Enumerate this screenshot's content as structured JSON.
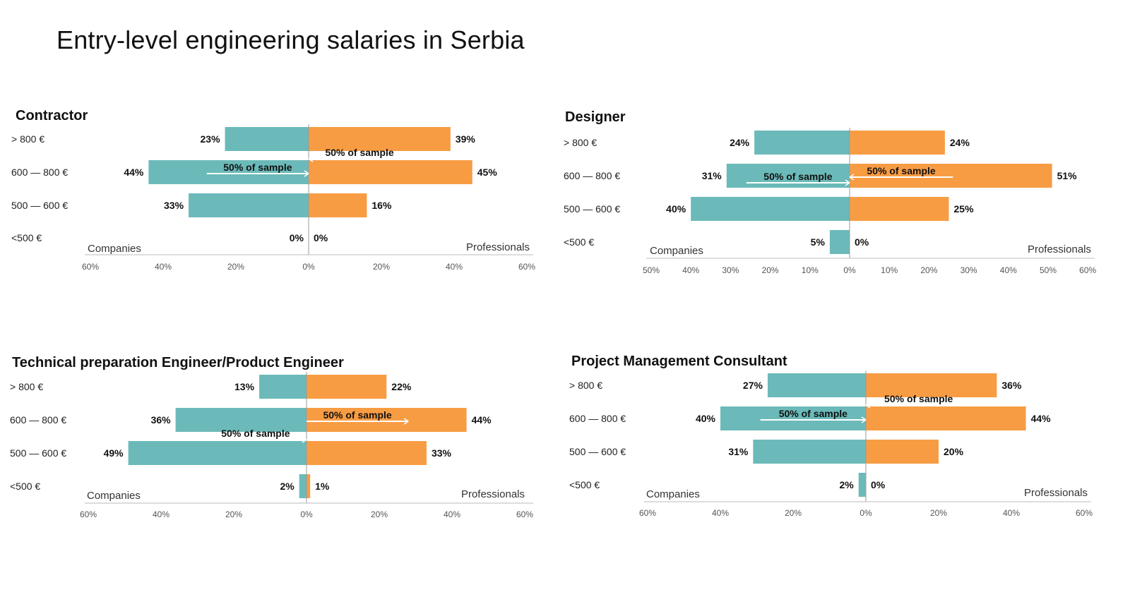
{
  "page": {
    "title": "Entry-level engineering salaries in Serbia"
  },
  "colors": {
    "companies": "#6bbab9",
    "professionals": "#f89c43",
    "axis": "#bbbbbb",
    "arrow": "#ffffff"
  },
  "chart_data": [
    {
      "type": "bar",
      "orientation": "diverging-horizontal",
      "title": "Contractor",
      "categories": [
        "> 800 €",
        "600 — 800 €",
        "500 — 600 €",
        "<500 €"
      ],
      "series": [
        {
          "name": "Companies",
          "values": [
            23,
            44,
            33,
            0
          ]
        },
        {
          "name": "Professionals",
          "values": [
            39,
            45,
            16,
            0
          ]
        }
      ],
      "left_label": "Companies",
      "right_label": "Professionals",
      "left_ticks": [
        "60%",
        "40%",
        "20%"
      ],
      "right_ticks": [
        "0%",
        "20%",
        "40%",
        "60%"
      ],
      "xlim": [
        -60,
        60
      ],
      "annotations": [
        {
          "text": "50% of sample",
          "side": "Professionals",
          "from": 28,
          "to": 0,
          "row": 1,
          "pos": "above"
        },
        {
          "text": "50% of sample",
          "side": "Companies",
          "from": -28,
          "to": 0,
          "row": 1,
          "pos": "inside"
        }
      ]
    },
    {
      "type": "bar",
      "orientation": "diverging-horizontal",
      "title": "Designer",
      "categories": [
        "> 800 €",
        "600 — 800 €",
        "500 — 600 €",
        "<500 €"
      ],
      "series": [
        {
          "name": "Companies",
          "values": [
            24,
            31,
            40,
            5
          ]
        },
        {
          "name": "Professionals",
          "values": [
            24,
            51,
            25,
            0
          ]
        }
      ],
      "left_label": "Companies",
      "right_label": "Professionals",
      "left_ticks": [
        "50%",
        "40%",
        "30%",
        "20%",
        "10%"
      ],
      "right_ticks": [
        "0%",
        "10%",
        "20%",
        "30%",
        "40%",
        "50%",
        "60%"
      ],
      "xlim": [
        -50,
        60
      ],
      "annotations": [
        {
          "text": "50% of sample",
          "side": "Professionals",
          "from": 26,
          "to": 0,
          "row": 1,
          "pos": "inside"
        },
        {
          "text": "50% of sample",
          "side": "Companies",
          "from": -26,
          "to": 0,
          "row": 1,
          "pos": "inside-low"
        }
      ]
    },
    {
      "type": "bar",
      "orientation": "diverging-horizontal",
      "title": "Technical preparation Engineer/Product Engineer",
      "categories": [
        "> 800 €",
        "600 — 800 €",
        "500 — 600 €",
        "<500 €"
      ],
      "series": [
        {
          "name": "Companies",
          "values": [
            13,
            36,
            49,
            2
          ]
        },
        {
          "name": "Professionals",
          "values": [
            22,
            44,
            33,
            1
          ]
        }
      ],
      "left_label": "Companies",
      "right_label": "Professionals",
      "left_ticks": [
        "60%",
        "40%",
        "20%"
      ],
      "right_ticks": [
        "0%",
        "20%",
        "40%",
        "60%"
      ],
      "xlim": [
        -60,
        60
      ],
      "annotations": [
        {
          "text": "50% of sample",
          "side": "Professionals",
          "from": 0,
          "to": 28,
          "row": 1,
          "pos": "inside"
        },
        {
          "text": "50% of sample",
          "side": "Companies",
          "from": -28,
          "to": 0,
          "row": 2,
          "pos": "above"
        }
      ]
    },
    {
      "type": "bar",
      "orientation": "diverging-horizontal",
      "title": "Project Management Consultant",
      "categories": [
        "> 800 €",
        "600 — 800 €",
        "500 — 600 €",
        "<500 €"
      ],
      "series": [
        {
          "name": "Companies",
          "values": [
            27,
            40,
            31,
            2
          ]
        },
        {
          "name": "Professionals",
          "values": [
            36,
            44,
            20,
            0
          ]
        }
      ],
      "left_label": "Companies",
      "right_label": "Professionals",
      "left_ticks": [
        "60%",
        "40%",
        "20%"
      ],
      "right_ticks": [
        "0%",
        "20%",
        "40%",
        "60%"
      ],
      "xlim": [
        -60,
        60
      ],
      "annotations": [
        {
          "text": "50% of sample",
          "side": "Professionals",
          "from": 29,
          "to": 0,
          "row": 1,
          "pos": "above"
        },
        {
          "text": "50% of sample",
          "side": "Companies",
          "from": -29,
          "to": 0,
          "row": 1,
          "pos": "inside"
        }
      ]
    }
  ]
}
